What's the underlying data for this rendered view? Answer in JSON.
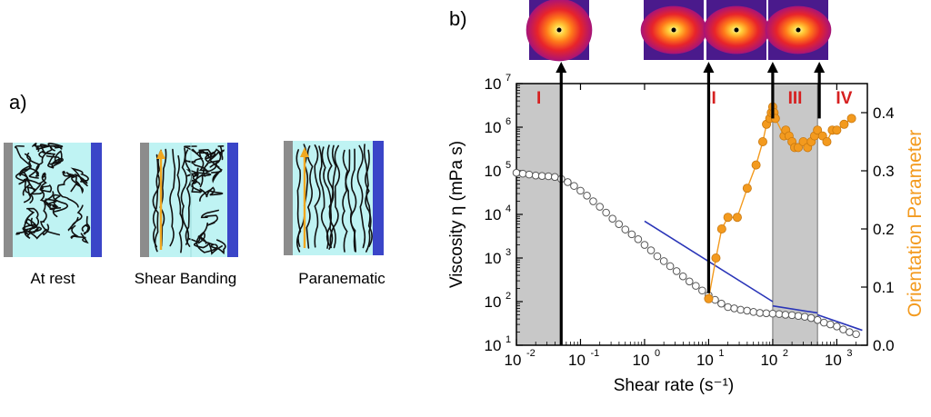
{
  "panel_a": {
    "label": "a)",
    "cells": [
      {
        "caption": "At rest",
        "arrow": false,
        "split": false
      },
      {
        "caption": "Shear Banding",
        "arrow": true,
        "split": true
      },
      {
        "caption": "Paranematic",
        "arrow": true,
        "split": false
      }
    ],
    "colors": {
      "fluid": "#bff3f3",
      "left_wall": "#8c8c8c",
      "right_wall": "#3a45c8",
      "arrow": "#f0a820",
      "chain": "#111111"
    }
  },
  "panel_b": {
    "label": "b)",
    "regions": [
      {
        "label": "I",
        "from": 0.01,
        "to": 0.05,
        "shaded": true
      },
      {
        "label": "II",
        "from": 0.05,
        "to": 100,
        "shaded": false
      },
      {
        "label": "III",
        "from": 100,
        "to": 500,
        "shaded": true
      },
      {
        "label": "IV",
        "from": 500,
        "to": 3000,
        "shaded": false
      }
    ],
    "pattern_rates": [
      0.05,
      10,
      100,
      500
    ],
    "colors": {
      "shade": "#c8c8c8",
      "region_label": "#d62020",
      "fit_line": "#2a35b8",
      "orientation": "#f39a1e",
      "viscosity_marker": "#ffffff"
    }
  },
  "chart_data": {
    "type": "scatter",
    "xlabel": "Shear rate (s⁻¹)",
    "ylabel": "Viscosity η (mPa s)",
    "y2label": "Orientation Parameter",
    "xscale": "log",
    "yscale": "log",
    "xlim": [
      0.01,
      3000
    ],
    "ylim": [
      10,
      10000000
    ],
    "y2lim": [
      0,
      0.45
    ],
    "x_ticks": [
      0.01,
      0.1,
      1,
      10,
      100,
      1000
    ],
    "x_tick_labels": [
      {
        "base": "10",
        "exp": "-2"
      },
      {
        "base": "10",
        "exp": "-1"
      },
      {
        "base": "10",
        "exp": "0"
      },
      {
        "base": "10",
        "exp": "1"
      },
      {
        "base": "10",
        "exp": "2"
      },
      {
        "base": "10",
        "exp": "3"
      }
    ],
    "y_ticks": [
      10,
      100,
      1000,
      10000,
      100000,
      1000000,
      10000000
    ],
    "y_tick_labels": [
      {
        "base": "10",
        "exp": "1"
      },
      {
        "base": "10",
        "exp": "2"
      },
      {
        "base": "10",
        "exp": "3"
      },
      {
        "base": "10",
        "exp": "4"
      },
      {
        "base": "10",
        "exp": "5"
      },
      {
        "base": "10",
        "exp": "6"
      },
      {
        "base": "10",
        "exp": "7"
      }
    ],
    "y2_ticks": [
      0.0,
      0.1,
      0.2,
      0.3,
      0.4
    ],
    "y2_tick_labels": [
      "0.0",
      "0.1",
      "0.2",
      "0.3",
      "0.4"
    ],
    "series": [
      {
        "name": "Viscosity",
        "axis": "left",
        "marker": "open-circle",
        "x": [
          0.01,
          0.0126,
          0.0158,
          0.02,
          0.0251,
          0.0316,
          0.0398,
          0.0501,
          0.0631,
          0.0794,
          0.1,
          0.126,
          0.158,
          0.2,
          0.251,
          0.316,
          0.398,
          0.501,
          0.631,
          0.794,
          1,
          1.26,
          1.58,
          2,
          2.51,
          3.16,
          3.98,
          5.01,
          6.31,
          7.94,
          10,
          12.6,
          15.8,
          20,
          25.1,
          31.6,
          39.8,
          50.1,
          63.1,
          79.4,
          100,
          126,
          158,
          200,
          251,
          316,
          398,
          501,
          631,
          794,
          1000,
          1260,
          1580,
          2000
        ],
        "y": [
          90000,
          86000,
          82000,
          78000,
          76000,
          75000,
          72000,
          65000,
          55000,
          45000,
          35000,
          27000,
          20000,
          15000,
          11000,
          8000,
          6000,
          4500,
          3500,
          2700,
          2000,
          1500,
          1100,
          850,
          650,
          500,
          380,
          290,
          230,
          180,
          140,
          110,
          90,
          75,
          70,
          65,
          62,
          58,
          55,
          54,
          53,
          52,
          50,
          49,
          47,
          45,
          42,
          38,
          33,
          30,
          27,
          23,
          20,
          18
        ]
      },
      {
        "name": "Power-law fit",
        "axis": "left",
        "marker": "line",
        "segments": [
          {
            "x": [
              1,
              100
            ],
            "y": [
              7000,
              100
            ]
          },
          {
            "x": [
              100,
              500
            ],
            "y": [
              80,
              55
            ]
          },
          {
            "x": [
              500,
              2500
            ],
            "y": [
              50,
              22
            ]
          }
        ]
      },
      {
        "name": "Orientation Parameter",
        "axis": "right",
        "marker": "filled-circle",
        "x": [
          10,
          13,
          16,
          20,
          28,
          40,
          55,
          70,
          80,
          90,
          95,
          100,
          105,
          110,
          150,
          160,
          180,
          200,
          220,
          250,
          300,
          350,
          400,
          450,
          500,
          600,
          700,
          850,
          1000,
          1300,
          1700
        ],
        "y": [
          0.08,
          0.15,
          0.2,
          0.22,
          0.22,
          0.27,
          0.31,
          0.35,
          0.38,
          0.39,
          0.4,
          0.41,
          0.4,
          0.39,
          0.36,
          0.37,
          0.36,
          0.35,
          0.34,
          0.34,
          0.35,
          0.34,
          0.35,
          0.36,
          0.37,
          0.36,
          0.35,
          0.37,
          0.37,
          0.38,
          0.39
        ]
      }
    ]
  }
}
